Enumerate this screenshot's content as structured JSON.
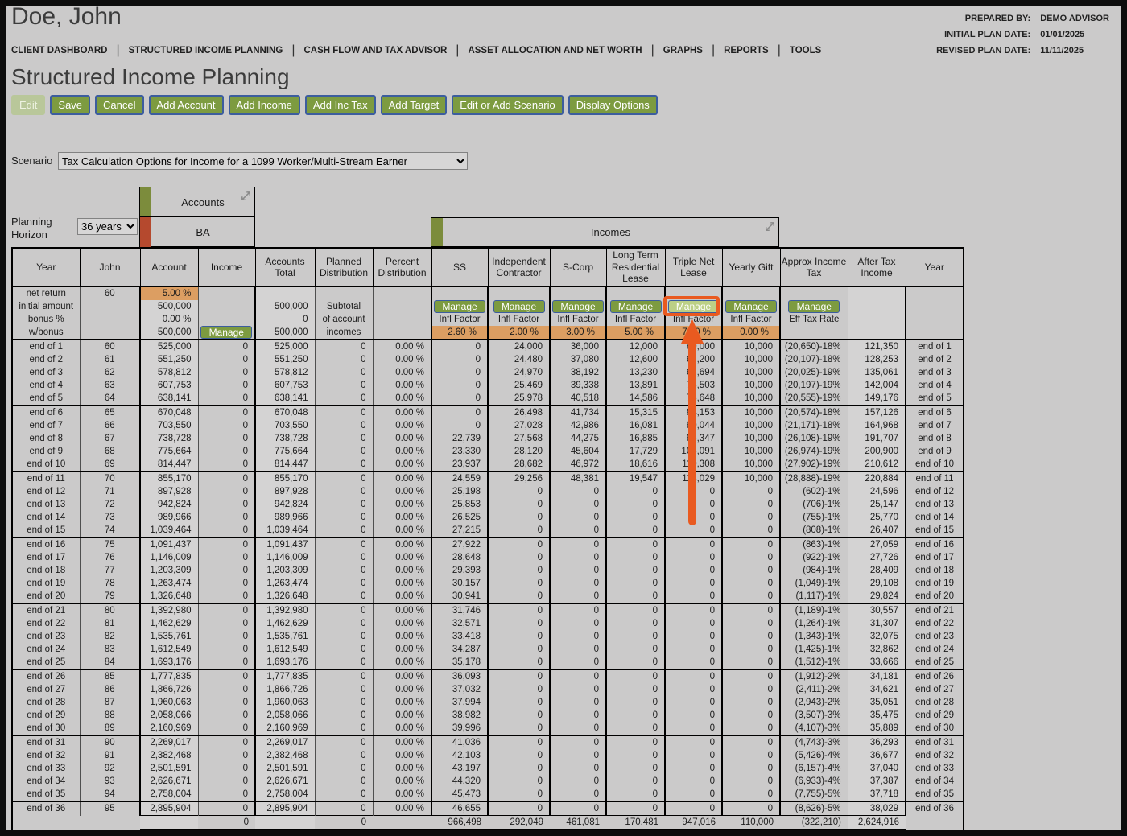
{
  "header": {
    "client_name": "Doe, John",
    "prepared_by_label": "PREPARED BY:",
    "prepared_by": "DEMO ADVISOR",
    "initial_plan_date_label": "INITIAL PLAN DATE:",
    "initial_plan_date": "01/01/2025",
    "revised_plan_date_label": "REVISED PLAN DATE:",
    "revised_plan_date": "11/11/2025"
  },
  "nav": {
    "items": [
      "CLIENT DASHBOARD",
      "STRUCTURED INCOME PLANNING",
      "CASH FLOW AND TAX ADVISOR",
      "ASSET ALLOCATION AND NET WORTH",
      "GRAPHS",
      "REPORTS",
      "TOOLS"
    ]
  },
  "page_title": "Structured Income Planning",
  "toolbar": {
    "buttons": [
      {
        "label": "Edit",
        "disabled": true
      },
      {
        "label": "Save"
      },
      {
        "label": "Cancel"
      },
      {
        "label": "Add Account"
      },
      {
        "label": "Add Income"
      },
      {
        "label": "Add Inc Tax"
      },
      {
        "label": "Add Target"
      },
      {
        "label": "Edit or Add Scenario"
      },
      {
        "label": "Display Options"
      }
    ]
  },
  "scenario": {
    "label": "Scenario",
    "selected": "Tax Calculation Options for Income for a 1099 Worker/Multi-Stream Earner"
  },
  "planning_horizon": {
    "label": "Planning Horizon",
    "value": "36 years"
  },
  "accounts_panel": {
    "title": "Accounts",
    "account_name": "BA"
  },
  "incomes_panel": {
    "title": "Incomes"
  },
  "table": {
    "columns": [
      "Year",
      "John",
      "Account",
      "Income",
      "Accounts Total",
      "Planned Distribution",
      "Percent Distribution",
      "SS",
      "Independent Contractor",
      "S-Corp",
      "Long Term Residential Lease",
      "Triple Net Lease",
      "Yearly Gift",
      "Approx Income Tax",
      "After Tax Income",
      "Year"
    ],
    "subheader": {
      "row_labels": [
        "net return",
        "initial amount",
        "bonus %",
        "w/bonus"
      ],
      "age": "60",
      "net_return": "5.00 %",
      "initial_amount": "500,000",
      "bonus_pct": "0.00 %",
      "w_bonus": "500,000",
      "accounts_total_initial": "500,000",
      "accounts_total_bonus": "0",
      "accounts_total_w_bonus": "500,000",
      "planned_note_1": "Subtotal",
      "planned_note_2": "of account",
      "planned_note_3": "incomes",
      "manage_label": "Manage",
      "infl_factor_label": "Infl Factor",
      "eff_tax_rate_label": "Eff Tax Rate",
      "infl_factors": {
        "ss": "2.60 %",
        "independent_contractor": "2.00 %",
        "s_corp": "3.00 %",
        "long_term_residential_lease": "5.00 %",
        "triple_net_lease": "7.00 %",
        "yearly_gift": "0.00 %"
      }
    },
    "rows": [
      [
        "end of 1",
        "60",
        "525,000",
        "0",
        "525,000",
        "0",
        "0.00 %",
        "0",
        "24,000",
        "36,000",
        "12,000",
        "60,000",
        "10,000",
        "(20,650)-18%",
        "121,350",
        "end of 1"
      ],
      [
        "end of 2",
        "61",
        "551,250",
        "0",
        "551,250",
        "0",
        "0.00 %",
        "0",
        "24,480",
        "37,080",
        "12,600",
        "64,200",
        "10,000",
        "(20,107)-18%",
        "128,253",
        "end of 2"
      ],
      [
        "end of 3",
        "62",
        "578,812",
        "0",
        "578,812",
        "0",
        "0.00 %",
        "0",
        "24,970",
        "38,192",
        "13,230",
        "68,694",
        "10,000",
        "(20,025)-19%",
        "135,061",
        "end of 3"
      ],
      [
        "end of 4",
        "63",
        "607,753",
        "0",
        "607,753",
        "0",
        "0.00 %",
        "0",
        "25,469",
        "39,338",
        "13,891",
        "73,503",
        "10,000",
        "(20,197)-19%",
        "142,004",
        "end of 4"
      ],
      [
        "end of 5",
        "64",
        "638,141",
        "0",
        "638,141",
        "0",
        "0.00 %",
        "0",
        "25,978",
        "40,518",
        "14,586",
        "78,648",
        "10,000",
        "(20,555)-19%",
        "149,176",
        "end of 5"
      ],
      [
        "end of 6",
        "65",
        "670,048",
        "0",
        "670,048",
        "0",
        "0.00 %",
        "0",
        "26,498",
        "41,734",
        "15,315",
        "84,153",
        "10,000",
        "(20,574)-18%",
        "157,126",
        "end of 6"
      ],
      [
        "end of 7",
        "66",
        "703,550",
        "0",
        "703,550",
        "0",
        "0.00 %",
        "0",
        "27,028",
        "42,986",
        "16,081",
        "90,044",
        "10,000",
        "(21,171)-18%",
        "164,968",
        "end of 7"
      ],
      [
        "end of 8",
        "67",
        "738,728",
        "0",
        "738,728",
        "0",
        "0.00 %",
        "22,739",
        "27,568",
        "44,275",
        "16,885",
        "96,347",
        "10,000",
        "(26,108)-19%",
        "191,707",
        "end of 8"
      ],
      [
        "end of 9",
        "68",
        "775,664",
        "0",
        "775,664",
        "0",
        "0.00 %",
        "23,330",
        "28,120",
        "45,604",
        "17,729",
        "103,091",
        "10,000",
        "(26,974)-19%",
        "200,900",
        "end of 9"
      ],
      [
        "end of 10",
        "69",
        "814,447",
        "0",
        "814,447",
        "0",
        "0.00 %",
        "23,937",
        "28,682",
        "46,972",
        "18,616",
        "110,308",
        "10,000",
        "(27,902)-19%",
        "210,612",
        "end of 10"
      ],
      [
        "end of 11",
        "70",
        "855,170",
        "0",
        "855,170",
        "0",
        "0.00 %",
        "24,559",
        "29,256",
        "48,381",
        "19,547",
        "118,029",
        "10,000",
        "(28,888)-19%",
        "220,884",
        "end of 11"
      ],
      [
        "end of 12",
        "71",
        "897,928",
        "0",
        "897,928",
        "0",
        "0.00 %",
        "25,198",
        "0",
        "0",
        "0",
        "0",
        "0",
        "(602)-1%",
        "24,596",
        "end of 12"
      ],
      [
        "end of 13",
        "72",
        "942,824",
        "0",
        "942,824",
        "0",
        "0.00 %",
        "25,853",
        "0",
        "0",
        "0",
        "0",
        "0",
        "(706)-1%",
        "25,147",
        "end of 13"
      ],
      [
        "end of 14",
        "73",
        "989,966",
        "0",
        "989,966",
        "0",
        "0.00 %",
        "26,525",
        "0",
        "0",
        "0",
        "0",
        "0",
        "(755)-1%",
        "25,770",
        "end of 14"
      ],
      [
        "end of 15",
        "74",
        "1,039,464",
        "0",
        "1,039,464",
        "0",
        "0.00 %",
        "27,215",
        "0",
        "0",
        "0",
        "0",
        "0",
        "(808)-1%",
        "26,407",
        "end of 15"
      ],
      [
        "end of 16",
        "75",
        "1,091,437",
        "0",
        "1,091,437",
        "0",
        "0.00 %",
        "27,922",
        "0",
        "0",
        "0",
        "0",
        "0",
        "(863)-1%",
        "27,059",
        "end of 16"
      ],
      [
        "end of 17",
        "76",
        "1,146,009",
        "0",
        "1,146,009",
        "0",
        "0.00 %",
        "28,648",
        "0",
        "0",
        "0",
        "0",
        "0",
        "(922)-1%",
        "27,726",
        "end of 17"
      ],
      [
        "end of 18",
        "77",
        "1,203,309",
        "0",
        "1,203,309",
        "0",
        "0.00 %",
        "29,393",
        "0",
        "0",
        "0",
        "0",
        "0",
        "(984)-1%",
        "28,409",
        "end of 18"
      ],
      [
        "end of 19",
        "78",
        "1,263,474",
        "0",
        "1,263,474",
        "0",
        "0.00 %",
        "30,157",
        "0",
        "0",
        "0",
        "0",
        "0",
        "(1,049)-1%",
        "29,108",
        "end of 19"
      ],
      [
        "end of 20",
        "79",
        "1,326,648",
        "0",
        "1,326,648",
        "0",
        "0.00 %",
        "30,941",
        "0",
        "0",
        "0",
        "0",
        "0",
        "(1,117)-1%",
        "29,824",
        "end of 20"
      ],
      [
        "end of 21",
        "80",
        "1,392,980",
        "0",
        "1,392,980",
        "0",
        "0.00 %",
        "31,746",
        "0",
        "0",
        "0",
        "0",
        "0",
        "(1,189)-1%",
        "30,557",
        "end of 21"
      ],
      [
        "end of 22",
        "81",
        "1,462,629",
        "0",
        "1,462,629",
        "0",
        "0.00 %",
        "32,571",
        "0",
        "0",
        "0",
        "0",
        "0",
        "(1,264)-1%",
        "31,307",
        "end of 22"
      ],
      [
        "end of 23",
        "82",
        "1,535,761",
        "0",
        "1,535,761",
        "0",
        "0.00 %",
        "33,418",
        "0",
        "0",
        "0",
        "0",
        "0",
        "(1,343)-1%",
        "32,075",
        "end of 23"
      ],
      [
        "end of 24",
        "83",
        "1,612,549",
        "0",
        "1,612,549",
        "0",
        "0.00 %",
        "34,287",
        "0",
        "0",
        "0",
        "0",
        "0",
        "(1,425)-1%",
        "32,862",
        "end of 24"
      ],
      [
        "end of 25",
        "84",
        "1,693,176",
        "0",
        "1,693,176",
        "0",
        "0.00 %",
        "35,178",
        "0",
        "0",
        "0",
        "0",
        "0",
        "(1,512)-1%",
        "33,666",
        "end of 25"
      ],
      [
        "end of 26",
        "85",
        "1,777,835",
        "0",
        "1,777,835",
        "0",
        "0.00 %",
        "36,093",
        "0",
        "0",
        "0",
        "0",
        "0",
        "(1,912)-2%",
        "34,181",
        "end of 26"
      ],
      [
        "end of 27",
        "86",
        "1,866,726",
        "0",
        "1,866,726",
        "0",
        "0.00 %",
        "37,032",
        "0",
        "0",
        "0",
        "0",
        "0",
        "(2,411)-2%",
        "34,621",
        "end of 27"
      ],
      [
        "end of 28",
        "87",
        "1,960,063",
        "0",
        "1,960,063",
        "0",
        "0.00 %",
        "37,994",
        "0",
        "0",
        "0",
        "0",
        "0",
        "(2,943)-2%",
        "35,051",
        "end of 28"
      ],
      [
        "end of 29",
        "88",
        "2,058,066",
        "0",
        "2,058,066",
        "0",
        "0.00 %",
        "38,982",
        "0",
        "0",
        "0",
        "0",
        "0",
        "(3,507)-3%",
        "35,475",
        "end of 29"
      ],
      [
        "end of 30",
        "89",
        "2,160,969",
        "0",
        "2,160,969",
        "0",
        "0.00 %",
        "39,996",
        "0",
        "0",
        "0",
        "0",
        "0",
        "(4,107)-3%",
        "35,889",
        "end of 30"
      ],
      [
        "end of 31",
        "90",
        "2,269,017",
        "0",
        "2,269,017",
        "0",
        "0.00 %",
        "41,036",
        "0",
        "0",
        "0",
        "0",
        "0",
        "(4,743)-3%",
        "36,293",
        "end of 31"
      ],
      [
        "end of 32",
        "91",
        "2,382,468",
        "0",
        "2,382,468",
        "0",
        "0.00 %",
        "42,103",
        "0",
        "0",
        "0",
        "0",
        "0",
        "(5,426)-4%",
        "36,677",
        "end of 32"
      ],
      [
        "end of 33",
        "92",
        "2,501,591",
        "0",
        "2,501,591",
        "0",
        "0.00 %",
        "43,197",
        "0",
        "0",
        "0",
        "0",
        "0",
        "(6,157)-4%",
        "37,040",
        "end of 33"
      ],
      [
        "end of 34",
        "93",
        "2,626,671",
        "0",
        "2,626,671",
        "0",
        "0.00 %",
        "44,320",
        "0",
        "0",
        "0",
        "0",
        "0",
        "(6,933)-4%",
        "37,387",
        "end of 34"
      ],
      [
        "end of 35",
        "94",
        "2,758,004",
        "0",
        "2,758,004",
        "0",
        "0.00 %",
        "45,473",
        "0",
        "0",
        "0",
        "0",
        "0",
        "(7,755)-5%",
        "37,718",
        "end of 35"
      ],
      [
        "end of 36",
        "95",
        "2,895,904",
        "0",
        "2,895,904",
        "0",
        "0.00 %",
        "46,655",
        "0",
        "0",
        "0",
        "0",
        "0",
        "(8,626)-5%",
        "38,029",
        "end of 36"
      ]
    ],
    "totals": {
      "income": "0",
      "planned_distribution": "0",
      "ss": "966,498",
      "independent_contractor": "292,049",
      "s_corp": "461,081",
      "long_term_residential_lease": "170,481",
      "triple_net_lease": "947,016",
      "yearly_gift": "110,000",
      "approx_income_tax": "(322,210)",
      "after_tax_income": "2,624,916"
    }
  },
  "annotation": {
    "target": "triple-net-lease-manage-button",
    "shape": "highlight-box-with-up-arrow",
    "color": "#e95a20"
  },
  "colors": {
    "page_background": "#cbcaca",
    "button_green": "#7d9b40",
    "manage_highlight_green": "#bcd086",
    "infl_factor_orange": "#dc9e62",
    "swatch_green": "#7c8c3c",
    "swatch_red": "#b5492e",
    "annotation_orange": "#e95a20"
  }
}
